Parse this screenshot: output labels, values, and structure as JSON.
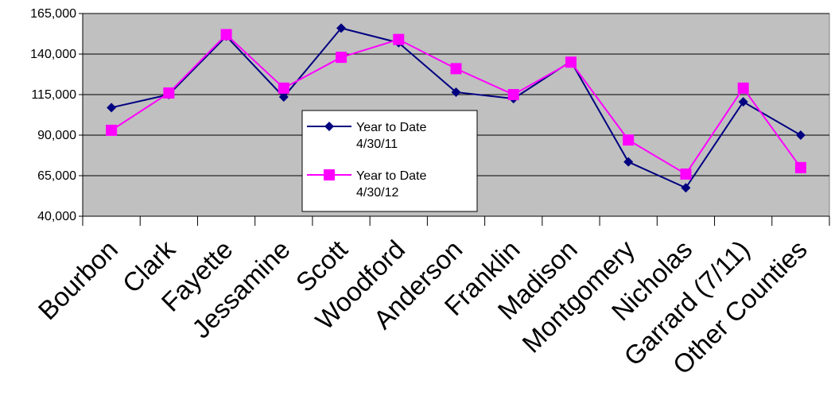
{
  "chart_data": {
    "type": "line",
    "title": "",
    "xlabel": "",
    "ylabel": "",
    "categories": [
      "Bourbon",
      "Clark",
      "Fayette",
      "Jessamine",
      "Scott",
      "Woodford",
      "Anderson",
      "Franklin",
      "Madison",
      "Montgomery",
      "Nicholas",
      "Garrard (7/11)",
      "Other Counties"
    ],
    "ylim": [
      40000,
      165000
    ],
    "yticks": [
      40000,
      65000,
      90000,
      115000,
      140000,
      165000
    ],
    "ytick_labels": [
      "40,000",
      "65,000",
      "90,000",
      "115,000",
      "140,000",
      "165,000"
    ],
    "grid": true,
    "legend_position": "center",
    "series": [
      {
        "name_lines": [
          "Year to Date",
          "4/30/11"
        ],
        "color": "#000080",
        "marker": "diamond",
        "values": [
          107000,
          115000,
          151000,
          113500,
          156000,
          147000,
          116500,
          112500,
          135500,
          73500,
          57500,
          110500,
          90000
        ]
      },
      {
        "name_lines": [
          "Year to Date",
          "4/30/12"
        ],
        "color": "#ff00ff",
        "marker": "square",
        "values": [
          93000,
          116000,
          152000,
          119000,
          138000,
          149000,
          131000,
          115000,
          135000,
          87000,
          66000,
          119000,
          70000
        ]
      }
    ],
    "plot_background": "#c0c0c0"
  }
}
